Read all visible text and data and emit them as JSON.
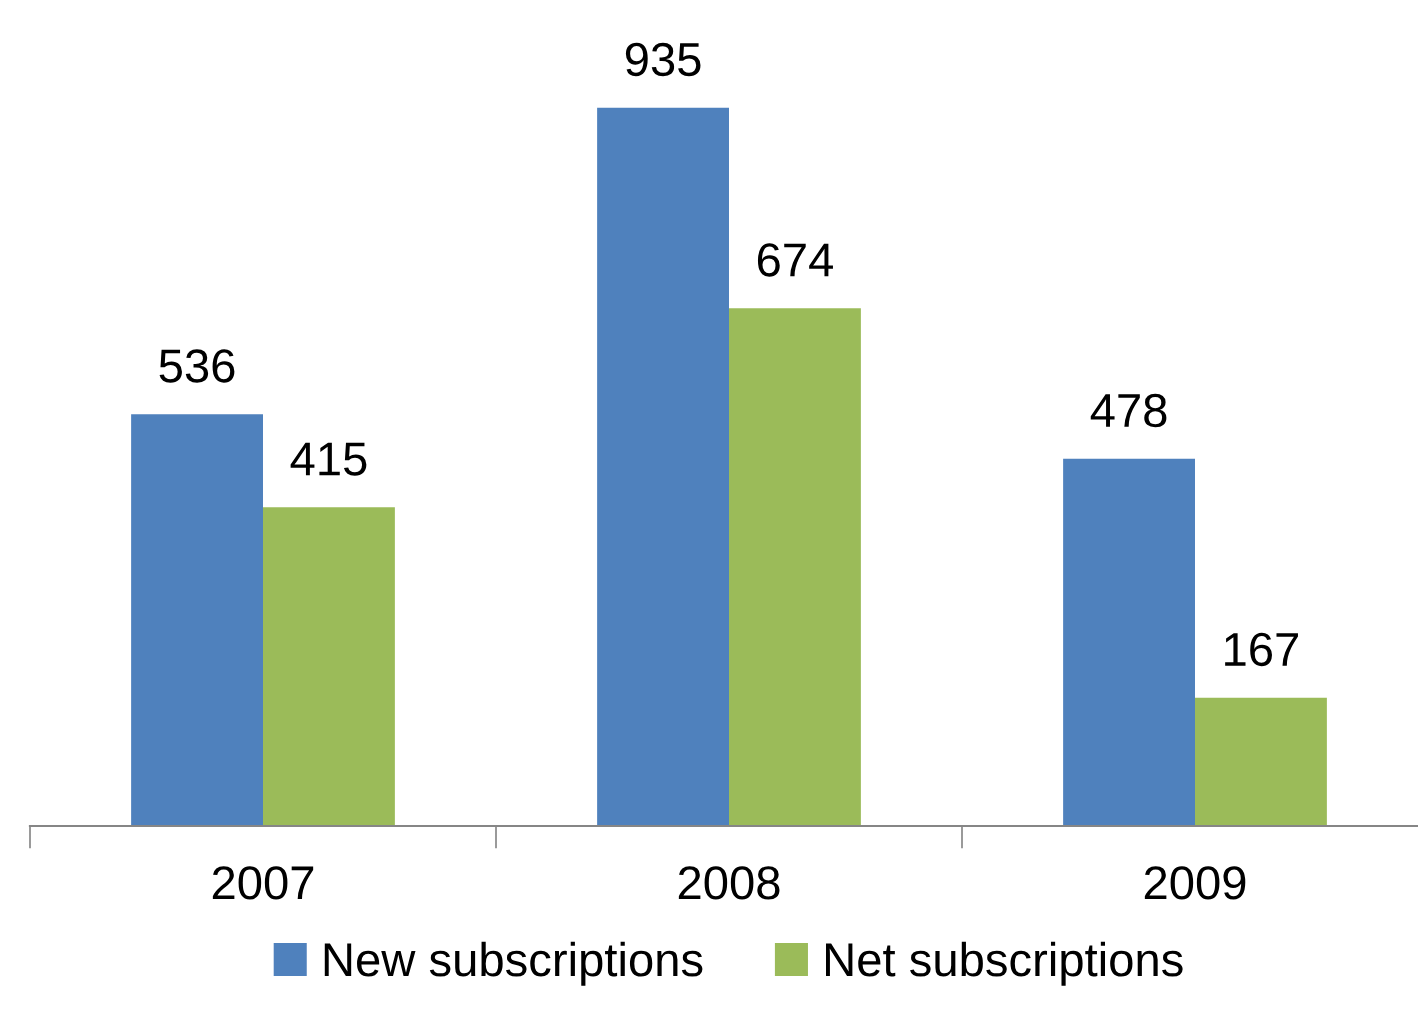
{
  "chart_data": {
    "type": "bar",
    "categories": [
      "2007",
      "2008",
      "2009"
    ],
    "series": [
      {
        "name": "New subscriptions",
        "color": "#4f81bd",
        "values": [
          536,
          935,
          478
        ]
      },
      {
        "name": "Net subscriptions",
        "color": "#9bbb59",
        "values": [
          415,
          674,
          167
        ]
      }
    ],
    "data_labels": true,
    "grid": false,
    "legend": "bottom"
  }
}
